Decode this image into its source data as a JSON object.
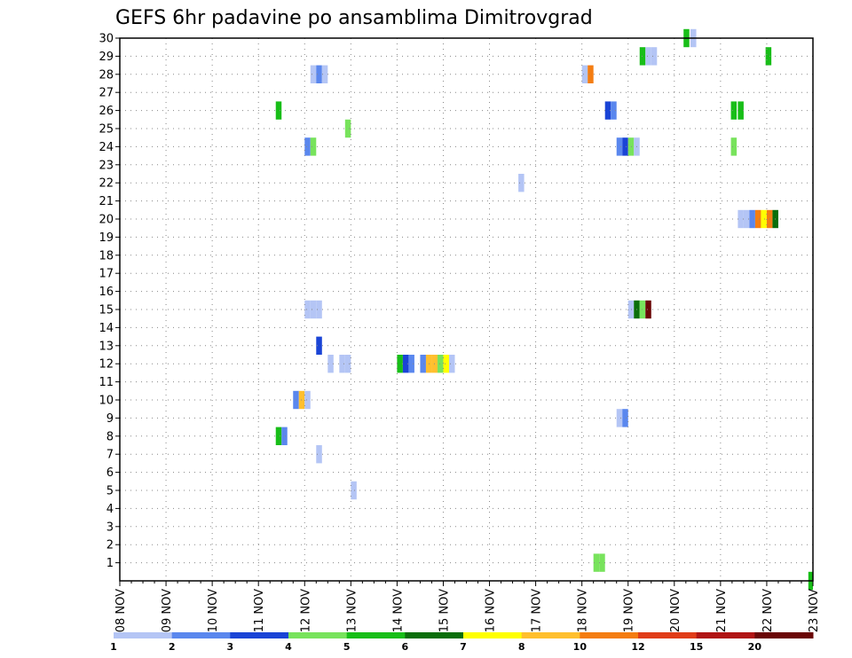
{
  "chart_data": {
    "type": "heatmap",
    "title": "GEFS 6hr padavine po ansamblima Dimitrovgrad",
    "xlabel": "",
    "ylabel": "",
    "x_ticks": [
      "08 NOV",
      "09 NOV",
      "10 NOV",
      "11 NOV",
      "12 NOV",
      "13 NOV",
      "14 NOV",
      "15 NOV",
      "16 NOV",
      "17 NOV",
      "18 NOV",
      "19 NOV",
      "20 NOV",
      "21 NOV",
      "22 NOV",
      "23 NOV"
    ],
    "y_ticks": [
      "1",
      "2",
      "3",
      "4",
      "5",
      "6",
      "7",
      "8",
      "9",
      "10",
      "11",
      "12",
      "13",
      "14",
      "15",
      "16",
      "17",
      "18",
      "19",
      "20",
      "21",
      "22",
      "23",
      "24",
      "25",
      "26",
      "27",
      "28",
      "29",
      "30"
    ],
    "x_step_hours": 6,
    "xlim": [
      0,
      60
    ],
    "ylim": [
      0,
      30
    ],
    "grid": true,
    "legend": {
      "position": "bottom",
      "labels": [
        "1",
        "2",
        "3",
        "4",
        "5",
        "6",
        "7",
        "8",
        "10",
        "12",
        "15",
        "20"
      ],
      "colors": [
        "#b4c5f5",
        "#5a87ee",
        "#1a44d6",
        "#78e35c",
        "#18be18",
        "#0a6e0a",
        "#ffff00",
        "#ffbf2e",
        "#f47d12",
        "#e03c18",
        "#b01414",
        "#6a0606"
      ]
    },
    "cells": [
      {
        "m": 30,
        "t": 48.8,
        "c": 4
      },
      {
        "m": 30,
        "t": 49.4,
        "c": 0
      },
      {
        "m": 29,
        "t": 45.0,
        "c": 4
      },
      {
        "m": 29,
        "t": 45.5,
        "c": 0
      },
      {
        "m": 29,
        "t": 46.0,
        "c": 0
      },
      {
        "m": 29,
        "t": 55.9,
        "c": 4
      },
      {
        "m": 28,
        "t": 16.5,
        "c": 0
      },
      {
        "m": 28,
        "t": 17.0,
        "c": 1
      },
      {
        "m": 28,
        "t": 17.5,
        "c": 0
      },
      {
        "m": 28,
        "t": 40.0,
        "c": 0
      },
      {
        "m": 28,
        "t": 40.5,
        "c": 8
      },
      {
        "m": 26,
        "t": 13.5,
        "c": 4
      },
      {
        "m": 26,
        "t": 42.0,
        "c": 2
      },
      {
        "m": 26,
        "t": 42.5,
        "c": 1
      },
      {
        "m": 26,
        "t": 52.9,
        "c": 4
      },
      {
        "m": 26,
        "t": 53.5,
        "c": 4
      },
      {
        "m": 25,
        "t": 19.5,
        "c": 3
      },
      {
        "m": 24,
        "t": 16.0,
        "c": 1
      },
      {
        "m": 24,
        "t": 16.5,
        "c": 3
      },
      {
        "m": 24,
        "t": 43.0,
        "c": 1
      },
      {
        "m": 24,
        "t": 43.5,
        "c": 2
      },
      {
        "m": 24,
        "t": 44.0,
        "c": 3
      },
      {
        "m": 24,
        "t": 44.5,
        "c": 0
      },
      {
        "m": 24,
        "t": 52.9,
        "c": 3
      },
      {
        "m": 22,
        "t": 34.5,
        "c": 0
      },
      {
        "m": 20,
        "t": 53.5,
        "c": 0
      },
      {
        "m": 20,
        "t": 54.0,
        "c": 0
      },
      {
        "m": 20,
        "t": 54.5,
        "c": 1
      },
      {
        "m": 20,
        "t": 55.0,
        "c": 8
      },
      {
        "m": 20,
        "t": 55.5,
        "c": 6
      },
      {
        "m": 20,
        "t": 56.0,
        "c": 8
      },
      {
        "m": 20,
        "t": 56.5,
        "c": 5
      },
      {
        "m": 15,
        "t": 16.0,
        "c": 0
      },
      {
        "m": 15,
        "t": 16.5,
        "c": 0
      },
      {
        "m": 15,
        "t": 17.0,
        "c": 0
      },
      {
        "m": 15,
        "t": 44.0,
        "c": 0
      },
      {
        "m": 15,
        "t": 44.5,
        "c": 5
      },
      {
        "m": 15,
        "t": 45.0,
        "c": 3
      },
      {
        "m": 15,
        "t": 45.5,
        "c": 11
      },
      {
        "m": 13,
        "t": 17.0,
        "c": 2
      },
      {
        "m": 12,
        "t": 18.0,
        "c": 0
      },
      {
        "m": 12,
        "t": 19.0,
        "c": 0
      },
      {
        "m": 12,
        "t": 19.5,
        "c": 0
      },
      {
        "m": 12,
        "t": 24.0,
        "c": 4
      },
      {
        "m": 12,
        "t": 24.5,
        "c": 2
      },
      {
        "m": 12,
        "t": 25.0,
        "c": 1
      },
      {
        "m": 12,
        "t": 26.0,
        "c": 1
      },
      {
        "m": 12,
        "t": 26.5,
        "c": 7
      },
      {
        "m": 12,
        "t": 27.0,
        "c": 7
      },
      {
        "m": 12,
        "t": 27.5,
        "c": 3
      },
      {
        "m": 12,
        "t": 28.0,
        "c": 6
      },
      {
        "m": 12,
        "t": 28.5,
        "c": 0
      },
      {
        "m": 10,
        "t": 15.0,
        "c": 1
      },
      {
        "m": 10,
        "t": 15.5,
        "c": 7
      },
      {
        "m": 10,
        "t": 16.0,
        "c": 0
      },
      {
        "m": 9,
        "t": 43.0,
        "c": 0
      },
      {
        "m": 9,
        "t": 43.5,
        "c": 1
      },
      {
        "m": 8,
        "t": 13.5,
        "c": 4
      },
      {
        "m": 8,
        "t": 14.0,
        "c": 1
      },
      {
        "m": 7,
        "t": 17.0,
        "c": 0
      },
      {
        "m": 5,
        "t": 20.0,
        "c": 0
      },
      {
        "m": 1,
        "t": 41.0,
        "c": 3
      },
      {
        "m": 1,
        "t": 41.5,
        "c": 3
      },
      {
        "m": 0,
        "t": 59.6,
        "c": 4
      }
    ]
  }
}
